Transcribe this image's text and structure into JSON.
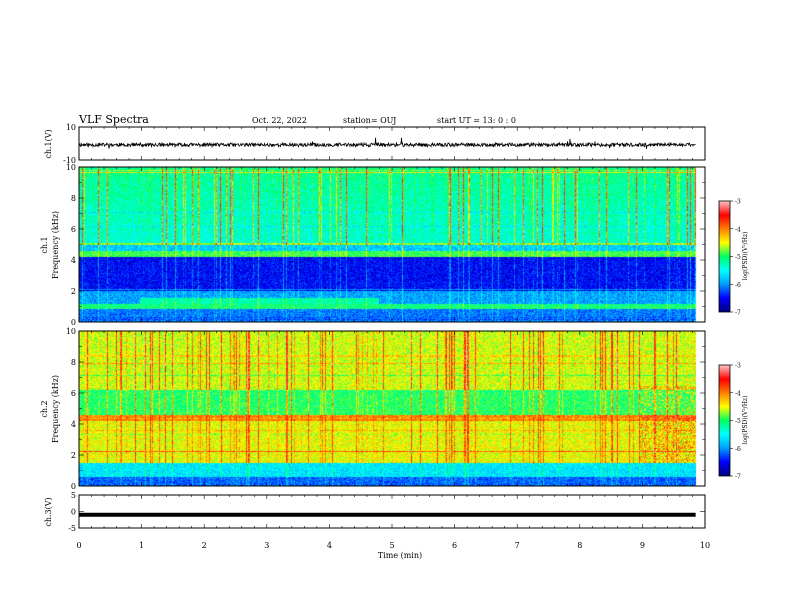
{
  "header": {
    "title": "VLF Spectra",
    "date": "Oct. 22, 2022",
    "station": "station= OUJ",
    "start_time": "start UT =   13: 0  : 0"
  },
  "chart_data": [
    {
      "type": "line",
      "panel": "ch1-waveform",
      "ylabel": "ch.1(V)",
      "ylim": [
        -10,
        10
      ],
      "yticks": [
        10,
        -10
      ],
      "series": [
        {
          "values_approx": "dense noise trace centered near 0 V with spikes up to about ±3 V"
        }
      ]
    },
    {
      "type": "heatmap",
      "panel": "ch1-spectrogram",
      "ylabel_top": "ch.1",
      "ylabel": "Frequency (kHz)",
      "ylim": [
        0,
        10
      ],
      "yticks": [
        0,
        2,
        4,
        6,
        8,
        10
      ],
      "colorbar": {
        "label": "log(PSD)(V²/Hz)",
        "range": [
          -7,
          -3
        ],
        "ticks": [
          -3,
          -4,
          -5,
          -6,
          -7
        ]
      },
      "description": "Mostly blue/green: dark blue band 2.0–4.2 kHz, bright green band near 4.5 kHz, cyan/green above 5 kHz with yellow/orange vertical impulsive streaks, green lines near 1.2 kHz"
    },
    {
      "type": "heatmap",
      "panel": "ch2-spectrogram",
      "ylabel_top": "ch.2",
      "ylabel": "Frequency (kHz)",
      "ylim": [
        0,
        10
      ],
      "yticks": [
        0,
        2,
        4,
        6,
        8,
        10
      ],
      "colorbar": {
        "label": "log(PSD)(V²/Hz)",
        "range": [
          -7,
          -3
        ],
        "ticks": [
          -3,
          -4,
          -5,
          -6,
          -7
        ]
      },
      "description": "Mostly green/yellow: yellow/orange above 6 kHz and 1.5–4.3 kHz, green band 4.6–6 kHz, cyan/blue below 1.5 kHz, red vertical streaks"
    },
    {
      "type": "line",
      "panel": "ch3-waveform",
      "ylabel": "ch.3(V)",
      "ylim": [
        -5,
        5
      ],
      "yticks": [
        5,
        0,
        -5
      ],
      "series": [
        {
          "values_approx": "flat thick line near -1 V"
        }
      ]
    }
  ],
  "x_axis": {
    "label": "Time (min)",
    "range": [
      0,
      10
    ],
    "ticks": [
      "0",
      "1",
      "2",
      "3",
      "4",
      "5",
      "6",
      "7",
      "8",
      "9",
      "10"
    ],
    "data_end": 9.85
  },
  "colors": {
    "colormap": [
      "#000080",
      "#0000ff",
      "#00a0ff",
      "#00ffff",
      "#00ff60",
      "#ffff00",
      "#ff8000",
      "#ff0000",
      "#ffc0c0"
    ]
  }
}
